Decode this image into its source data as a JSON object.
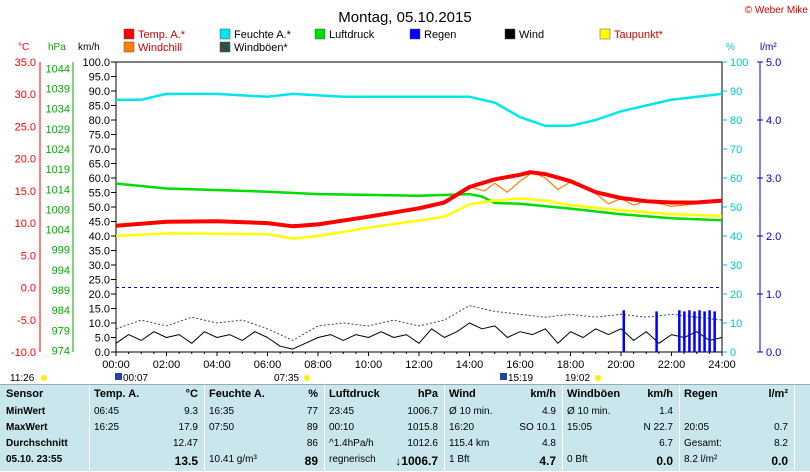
{
  "title": "Montag, 05.10.2015",
  "copyright": "© Weber Mike",
  "axis_units": {
    "celsius": "°C",
    "hpa": "hPa",
    "kmh": "km/h",
    "percent": "%",
    "lqm": "l/m²"
  },
  "legend": [
    {
      "label": "Temp. A.*",
      "color": "#ff0000"
    },
    {
      "label": "Feuchte A.*",
      "color": "#00e5ee"
    },
    {
      "label": "Luftdruck",
      "color": "#00dd00"
    },
    {
      "label": "Regen",
      "color": "#0000ff"
    },
    {
      "label": "Wind",
      "color": "#000000"
    },
    {
      "label": "Taupunkt*",
      "color": "#ffff00"
    },
    {
      "label": "Windchill",
      "color": "#ff7f00"
    },
    {
      "label": "Windböen*",
      "color": "#2f4f4f"
    }
  ],
  "events": {
    "sunrise_top": "11:26",
    "moon1": "00:07",
    "sunrise": "07:35",
    "moon2": "15:19",
    "sunset": "19:02"
  },
  "chart_data": {
    "type": "line",
    "x_label_ticks": [
      "00:00",
      "02:00",
      "04:00",
      "06:00",
      "08:00",
      "10:00",
      "12:00",
      "14:00",
      "16:00",
      "18:00",
      "20:00",
      "22:00",
      "24:00"
    ],
    "xlim": [
      0,
      24
    ],
    "axes": {
      "temperature_c": {
        "ylim": [
          -10,
          35
        ],
        "ticks": [
          "35.0",
          "30.0",
          "25.0",
          "20.0",
          "15.0",
          "10.0",
          "5.0",
          "0.0",
          "-5.0",
          "-10.0"
        ]
      },
      "pressure_hpa": {
        "ylim": [
          974,
          1046
        ],
        "ticks": [
          "1044",
          "1039",
          "1034",
          "1029",
          "1024",
          "1019",
          "1014",
          "1009",
          "1004",
          "999",
          "994",
          "989",
          "984",
          "979",
          "974"
        ]
      },
      "wind_kmh": {
        "ylim": [
          0,
          100
        ],
        "ticks": [
          "100.0",
          "95.0",
          "90.0",
          "85.0",
          "80.0",
          "75.0",
          "70.0",
          "65.0",
          "60.0",
          "55.0",
          "50.0",
          "45.0",
          "40.0",
          "35.0",
          "30.0",
          "25.0",
          "20.0",
          "15.0",
          "10.0",
          "5.0",
          "0.0"
        ]
      },
      "humidity_pct": {
        "ylim": [
          0,
          100
        ],
        "ticks": [
          "100",
          "90",
          "80",
          "70",
          "60",
          "50",
          "40",
          "30",
          "20",
          "10",
          "0"
        ]
      },
      "rain_lqm": {
        "ylim": [
          0,
          5
        ],
        "ticks": [
          "5.0",
          "4.0",
          "3.0",
          "2.0",
          "1.0",
          "0.0"
        ]
      }
    },
    "series": [
      {
        "name": "Temp. A.*",
        "axis": "temperature_c",
        "color": "#ff0000",
        "points": [
          [
            0,
            9.6
          ],
          [
            2,
            10.2
          ],
          [
            4,
            10.3
          ],
          [
            6,
            10.0
          ],
          [
            7,
            9.5
          ],
          [
            8,
            9.8
          ],
          [
            10,
            11.0
          ],
          [
            12,
            12.3
          ],
          [
            13,
            13.2
          ],
          [
            14,
            15.6
          ],
          [
            15,
            16.8
          ],
          [
            16,
            17.5
          ],
          [
            16.4,
            17.9
          ],
          [
            17,
            17.6
          ],
          [
            18,
            16.5
          ],
          [
            19,
            14.8
          ],
          [
            20,
            13.9
          ],
          [
            21,
            13.4
          ],
          [
            22,
            13.2
          ],
          [
            23,
            13.2
          ],
          [
            24,
            13.5
          ]
        ]
      },
      {
        "name": "Feuchte A.*",
        "axis": "humidity_pct",
        "color": "#00e5ee",
        "points": [
          [
            0,
            87
          ],
          [
            1,
            87
          ],
          [
            2,
            89
          ],
          [
            4,
            89
          ],
          [
            6,
            88
          ],
          [
            7,
            89
          ],
          [
            9,
            88
          ],
          [
            12,
            88
          ],
          [
            14,
            88
          ],
          [
            15,
            86
          ],
          [
            16,
            81
          ],
          [
            17,
            78
          ],
          [
            18,
            78
          ],
          [
            19,
            80
          ],
          [
            20,
            83
          ],
          [
            22,
            87
          ],
          [
            24,
            89
          ]
        ]
      },
      {
        "name": "Luftdruck",
        "axis": "pressure_hpa",
        "color": "#00dd00",
        "points": [
          [
            0,
            1015.8
          ],
          [
            2,
            1014.6
          ],
          [
            6,
            1013.8
          ],
          [
            8,
            1013.2
          ],
          [
            10,
            1013.0
          ],
          [
            12,
            1012.8
          ],
          [
            14,
            1013.2
          ],
          [
            14.5,
            1012.6
          ],
          [
            15,
            1011.0
          ],
          [
            16,
            1010.8
          ],
          [
            18,
            1009.6
          ],
          [
            20,
            1008.2
          ],
          [
            22,
            1007.2
          ],
          [
            24,
            1006.7
          ]
        ]
      },
      {
        "name": "Taupunkt*",
        "axis": "temperature_c",
        "color": "#ffff00",
        "points": [
          [
            0,
            8.0
          ],
          [
            2,
            8.4
          ],
          [
            6,
            8.3
          ],
          [
            7,
            7.6
          ],
          [
            8,
            8.0
          ],
          [
            10,
            9.3
          ],
          [
            12,
            10.4
          ],
          [
            13,
            11.0
          ],
          [
            14,
            12.9
          ],
          [
            15,
            13.5
          ],
          [
            16,
            13.8
          ],
          [
            17,
            13.5
          ],
          [
            18,
            12.8
          ],
          [
            20,
            12.0
          ],
          [
            22,
            11.4
          ],
          [
            24,
            11.1
          ]
        ]
      },
      {
        "name": "Windchill",
        "axis": "temperature_c",
        "color": "#ff7f00",
        "points": [
          [
            14,
            15.6
          ],
          [
            14.6,
            15.0
          ],
          [
            15,
            16.2
          ],
          [
            15.5,
            14.8
          ],
          [
            16,
            16.5
          ],
          [
            16.5,
            17.9
          ],
          [
            17,
            17.0
          ],
          [
            17.5,
            15.2
          ],
          [
            18,
            16.4
          ],
          [
            19,
            14.6
          ],
          [
            19.5,
            13.0
          ],
          [
            20,
            13.8
          ],
          [
            20.5,
            12.8
          ],
          [
            21,
            13.5
          ],
          [
            22,
            12.6
          ],
          [
            23,
            13.0
          ],
          [
            24,
            13.5
          ]
        ]
      },
      {
        "name": "Wind",
        "axis": "wind_kmh",
        "color": "#000000",
        "points": [
          [
            0,
            3
          ],
          [
            0.5,
            6
          ],
          [
            1,
            4
          ],
          [
            1.5,
            7
          ],
          [
            2,
            5
          ],
          [
            2.5,
            6
          ],
          [
            3,
            3
          ],
          [
            3.5,
            7
          ],
          [
            4,
            5
          ],
          [
            4.5,
            6
          ],
          [
            5,
            4
          ],
          [
            5.5,
            7
          ],
          [
            6,
            5
          ],
          [
            6.5,
            2
          ],
          [
            7,
            1
          ],
          [
            7.5,
            3
          ],
          [
            8,
            5
          ],
          [
            8.5,
            6
          ],
          [
            9,
            4
          ],
          [
            9.5,
            6
          ],
          [
            10,
            5
          ],
          [
            10.5,
            7
          ],
          [
            11,
            5
          ],
          [
            11.5,
            6
          ],
          [
            12,
            3
          ],
          [
            12.5,
            8
          ],
          [
            13,
            5
          ],
          [
            13.5,
            7
          ],
          [
            14,
            10
          ],
          [
            14.5,
            8
          ],
          [
            15,
            9
          ],
          [
            15.5,
            5
          ],
          [
            16,
            7
          ],
          [
            16.5,
            6
          ],
          [
            17,
            8
          ],
          [
            17.5,
            3
          ],
          [
            18,
            7
          ],
          [
            18.5,
            5
          ],
          [
            19,
            8
          ],
          [
            19.5,
            6
          ],
          [
            20,
            8
          ],
          [
            20.5,
            4
          ],
          [
            21,
            7
          ],
          [
            21.5,
            3
          ],
          [
            22,
            6
          ],
          [
            22.5,
            5
          ],
          [
            23,
            7
          ],
          [
            23.5,
            4
          ],
          [
            24,
            5
          ]
        ]
      },
      {
        "name": "Windböen*",
        "axis": "wind_kmh",
        "color": "#2f4f4f",
        "points": [
          [
            0,
            8
          ],
          [
            1,
            11
          ],
          [
            2,
            9
          ],
          [
            3,
            12
          ],
          [
            4,
            10
          ],
          [
            5,
            11
          ],
          [
            6,
            8
          ],
          [
            7,
            4
          ],
          [
            8,
            9
          ],
          [
            9,
            10
          ],
          [
            10,
            9
          ],
          [
            11,
            11
          ],
          [
            12,
            9
          ],
          [
            13,
            11
          ],
          [
            14,
            16
          ],
          [
            15,
            14
          ],
          [
            16,
            13
          ],
          [
            17,
            12
          ],
          [
            18,
            13
          ],
          [
            19,
            12
          ],
          [
            20,
            13
          ],
          [
            21,
            12
          ],
          [
            22,
            13
          ],
          [
            23,
            12
          ],
          [
            24,
            11
          ]
        ]
      },
      {
        "name": "Regen",
        "axis": "rain_lqm",
        "color": "#0000ff",
        "bars": [
          [
            20.1,
            0.72
          ],
          [
            21.4,
            0.7
          ],
          [
            22.3,
            0.72
          ],
          [
            22.5,
            0.7
          ],
          [
            22.7,
            0.72
          ],
          [
            22.9,
            0.7
          ],
          [
            23.1,
            0.72
          ],
          [
            23.3,
            0.7
          ],
          [
            23.5,
            0.72
          ],
          [
            23.7,
            0.7
          ]
        ]
      }
    ],
    "reference_lines": [
      {
        "axis": "temperature_c",
        "value": 0,
        "color": "#0000cc",
        "style": "dashed"
      }
    ]
  },
  "stats": {
    "row_labels": [
      "Sensor",
      "MinWert",
      "MaxWert",
      "Durchschnitt",
      "05.10. 23:55"
    ],
    "columns": [
      {
        "head": "Temp. A.",
        "unit": "°C",
        "rows": [
          [
            "06:45",
            "9.3"
          ],
          [
            "16:25",
            "17.9"
          ],
          [
            "",
            "12.47"
          ],
          [
            "",
            "13.5"
          ]
        ]
      },
      {
        "head": "Feuchte A.",
        "unit": "%",
        "rows": [
          [
            "16:35",
            "77"
          ],
          [
            "07:50",
            "89"
          ],
          [
            "",
            "86"
          ],
          [
            "10.41 g/m³",
            "89"
          ]
        ]
      },
      {
        "head": "Luftdruck",
        "unit": "hPa",
        "rows": [
          [
            "23:45",
            "1006.7"
          ],
          [
            "00:10",
            "1015.8"
          ],
          [
            "^1.4hPa/h",
            "1012.6"
          ],
          [
            "regnerisch",
            "↓1006.7"
          ]
        ]
      },
      {
        "head": "Wind",
        "unit": "km/h",
        "rows": [
          [
            "Ø 10 min.",
            "4.9"
          ],
          [
            "16:20",
            "SO 10.1"
          ],
          [
            "115.4 km",
            "4.8"
          ],
          [
            "1 Bft",
            "4.7"
          ]
        ]
      },
      {
        "head": "Windböen",
        "unit": "km/h",
        "rows": [
          [
            "Ø 10 min.",
            "1.4"
          ],
          [
            "15:05",
            "N 22.7"
          ],
          [
            "",
            "6.7"
          ],
          [
            "0 Bft",
            "0.0"
          ]
        ]
      },
      {
        "head": "Regen",
        "unit": "l/m²",
        "rows": [
          [
            "",
            ""
          ],
          [
            "20:05",
            "0.7"
          ],
          [
            "Gesamt:",
            "8.2"
          ],
          [
            "8.2 l/m²",
            "0.0"
          ]
        ]
      }
    ]
  }
}
